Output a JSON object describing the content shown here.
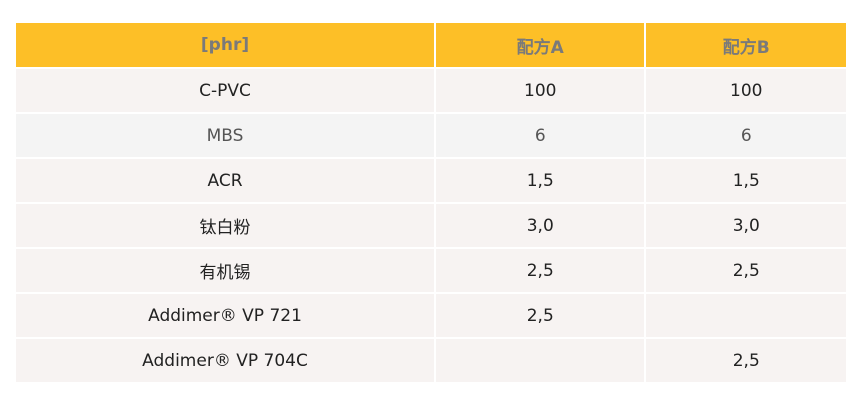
{
  "table": {
    "headers": [
      "[phr]",
      "配方A",
      "配方B"
    ],
    "rows": [
      [
        "C-PVC",
        "100",
        "100"
      ],
      [
        "MBS",
        "6",
        "6"
      ],
      [
        "ACR",
        "1,5",
        "1,5"
      ],
      [
        "钛白粉",
        "3,0",
        "3,0"
      ],
      [
        "有机锡",
        "2,5",
        "2,5"
      ],
      [
        "Addimer® VP 721",
        "2,5",
        ""
      ],
      [
        "Addimer® VP 704C",
        "",
        "2,5"
      ]
    ]
  },
  "colors": {
    "header_bg": "#fdbf27",
    "header_text": "#7a7a7a",
    "row_bg": "#f7f3f2"
  }
}
